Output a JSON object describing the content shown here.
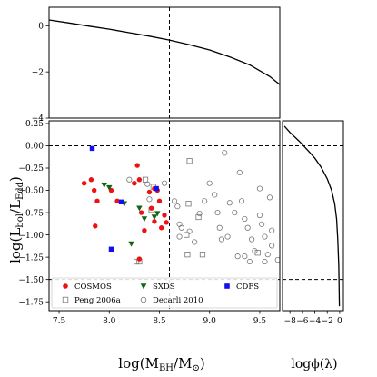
{
  "chart_data": [
    {
      "type": "line",
      "panel": "top",
      "xlim": [
        7.4,
        9.7
      ],
      "ylim": [
        -4,
        0.8
      ],
      "yticks": [
        0,
        -2,
        -4
      ],
      "vline_x": 8.6,
      "x": [
        7.4,
        7.6,
        7.8,
        8.0,
        8.2,
        8.4,
        8.6,
        8.8,
        9.0,
        9.2,
        9.4,
        9.6,
        9.7
      ],
      "y": [
        0.25,
        0.12,
        -0.02,
        -0.15,
        -0.3,
        -0.45,
        -0.62,
        -0.82,
        -1.05,
        -1.35,
        -1.7,
        -2.2,
        -2.55
      ]
    },
    {
      "type": "scatter",
      "panel": "main",
      "xlabel": "log(M_BH/M_⊙)",
      "ylabel": "log(L_bol/L_Edd)",
      "xlim": [
        7.4,
        9.7
      ],
      "ylim": [
        -1.85,
        0.28
      ],
      "xticks": [
        7.5,
        8.0,
        8.5,
        9.0,
        9.5
      ],
      "xtick_labels": [
        "7.5",
        "8.0",
        "8.5",
        "9.0",
        "9.5"
      ],
      "yticks": [
        0.25,
        0.0,
        -0.25,
        -0.5,
        -0.75,
        -1.0,
        -1.25,
        -1.5,
        -1.75
      ],
      "ytick_labels": [
        "0.25",
        "0.00",
        "−0.25",
        "−0.50",
        "−0.75",
        "−1.00",
        "−1.25",
        "−1.50",
        "−1.75"
      ],
      "hlines": [
        0.0,
        -1.5
      ],
      "vline_x": 8.6,
      "legend_position": "bottom",
      "series": [
        {
          "name": "COSMOS",
          "marker": "circle-filled",
          "color": "#ee1111",
          "points": [
            [
              7.75,
              -0.42
            ],
            [
              7.82,
              -0.38
            ],
            [
              7.85,
              -0.5
            ],
            [
              7.88,
              -0.62
            ],
            [
              7.86,
              -0.9
            ],
            [
              8.02,
              -0.5
            ],
            [
              8.08,
              -0.62
            ],
            [
              8.25,
              -0.42
            ],
            [
              8.28,
              -0.22
            ],
            [
              8.3,
              -0.38
            ],
            [
              8.32,
              -0.75
            ],
            [
              8.35,
              -0.95
            ],
            [
              8.4,
              -0.52
            ],
            [
              8.42,
              -0.7
            ],
            [
              8.45,
              -0.85
            ],
            [
              8.48,
              -0.5
            ],
            [
              8.5,
              -0.62
            ],
            [
              8.52,
              -0.92
            ],
            [
              8.55,
              -0.78
            ],
            [
              8.57,
              -0.86
            ],
            [
              8.3,
              -1.27
            ],
            [
              8.45,
              -0.48
            ]
          ]
        },
        {
          "name": "SXDS",
          "marker": "triangle-down-filled",
          "color": "#116611",
          "points": [
            [
              7.95,
              -0.44
            ],
            [
              8.0,
              -0.47
            ],
            [
              8.15,
              -0.65
            ],
            [
              8.22,
              -1.1
            ],
            [
              8.3,
              -0.7
            ],
            [
              8.35,
              -0.82
            ],
            [
              8.45,
              -0.8
            ],
            [
              8.48,
              -0.76
            ]
          ]
        },
        {
          "name": "CDFS",
          "marker": "square-filled",
          "color": "#1111ee",
          "points": [
            [
              7.83,
              -0.03
            ],
            [
              8.12,
              -0.63
            ],
            [
              8.02,
              -1.16
            ],
            [
              8.47,
              -0.48
            ]
          ]
        },
        {
          "name": "Peng 2006a",
          "marker": "square-open",
          "color": "#777777",
          "points": [
            [
              8.36,
              -0.38
            ],
            [
              8.44,
              -0.46
            ],
            [
              8.42,
              -0.72
            ],
            [
              8.3,
              -1.3
            ],
            [
              8.27,
              -1.3
            ],
            [
              8.8,
              -0.17
            ],
            [
              8.79,
              -0.65
            ],
            [
              8.77,
              -1.0
            ],
            [
              8.78,
              -1.22
            ],
            [
              8.93,
              -1.22
            ],
            [
              8.89,
              -0.8
            ],
            [
              9.48,
              -1.2
            ]
          ]
        },
        {
          "name": "Decarli 2010",
          "marker": "circle-open",
          "color": "#777777",
          "points": [
            [
              8.2,
              -0.38
            ],
            [
              8.38,
              -0.43
            ],
            [
              8.4,
              -0.6
            ],
            [
              8.65,
              -0.62
            ],
            [
              8.68,
              -0.68
            ],
            [
              8.72,
              -0.92
            ],
            [
              8.8,
              -0.96
            ],
            [
              8.7,
              -1.02
            ],
            [
              8.7,
              -0.88
            ],
            [
              8.85,
              -1.08
            ],
            [
              8.9,
              -0.76
            ],
            [
              8.95,
              -0.62
            ],
            [
              9.0,
              -0.42
            ],
            [
              9.05,
              -0.55
            ],
            [
              9.08,
              -0.75
            ],
            [
              9.1,
              -0.92
            ],
            [
              9.12,
              -1.05
            ],
            [
              9.18,
              -1.02
            ],
            [
              9.15,
              -0.08
            ],
            [
              9.25,
              -0.75
            ],
            [
              9.3,
              -0.3
            ],
            [
              9.32,
              -0.62
            ],
            [
              9.35,
              -0.82
            ],
            [
              9.38,
              -0.92
            ],
            [
              9.42,
              -1.05
            ],
            [
              9.45,
              -1.18
            ],
            [
              9.5,
              -0.48
            ],
            [
              9.5,
              -0.78
            ],
            [
              9.52,
              -0.88
            ],
            [
              9.55,
              -1.02
            ],
            [
              9.58,
              -1.22
            ],
            [
              9.6,
              -0.58
            ],
            [
              9.62,
              -1.12
            ],
            [
              9.35,
              -1.24
            ],
            [
              9.4,
              -1.3
            ],
            [
              9.55,
              -1.3
            ],
            [
              9.62,
              -0.95
            ],
            [
              9.68,
              -1.28
            ],
            [
              9.2,
              -0.64
            ],
            [
              9.28,
              -1.24
            ],
            [
              8.55,
              -0.42
            ]
          ]
        }
      ]
    },
    {
      "type": "line",
      "panel": "right",
      "xlabel": "logϕ(λ)",
      "xlim": [
        -9.2,
        0.6
      ],
      "ylim": [
        -1.85,
        0.28
      ],
      "xticks": [
        -8,
        -6,
        -4,
        -2,
        0
      ],
      "xtick_labels": [
        "−8",
        "−6",
        "−4",
        "−2",
        "0"
      ],
      "hlines": [
        0.0,
        -1.5
      ],
      "x": [
        -8.9,
        -8.0,
        -6.5,
        -5.0,
        -4.0,
        -3.0,
        -2.0,
        -1.3,
        -0.8,
        -0.5,
        -0.3,
        -0.15,
        -0.05
      ],
      "y": [
        0.22,
        0.15,
        0.05,
        -0.06,
        -0.14,
        -0.24,
        -0.37,
        -0.5,
        -0.65,
        -0.82,
        -1.05,
        -1.35,
        -1.8
      ]
    }
  ]
}
